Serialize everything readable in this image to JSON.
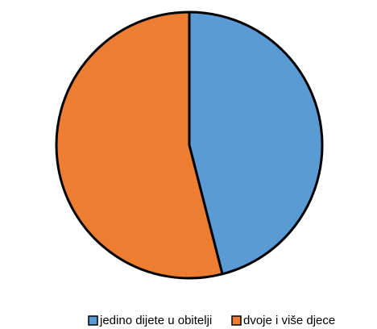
{
  "chart_data": {
    "type": "pie",
    "categories": [
      "jedino dijete u obitelji",
      "dvoje i više djece"
    ],
    "values": [
      46,
      54
    ],
    "colors": [
      "#5b9bd5",
      "#ed7d31"
    ],
    "legend": "bottom"
  }
}
